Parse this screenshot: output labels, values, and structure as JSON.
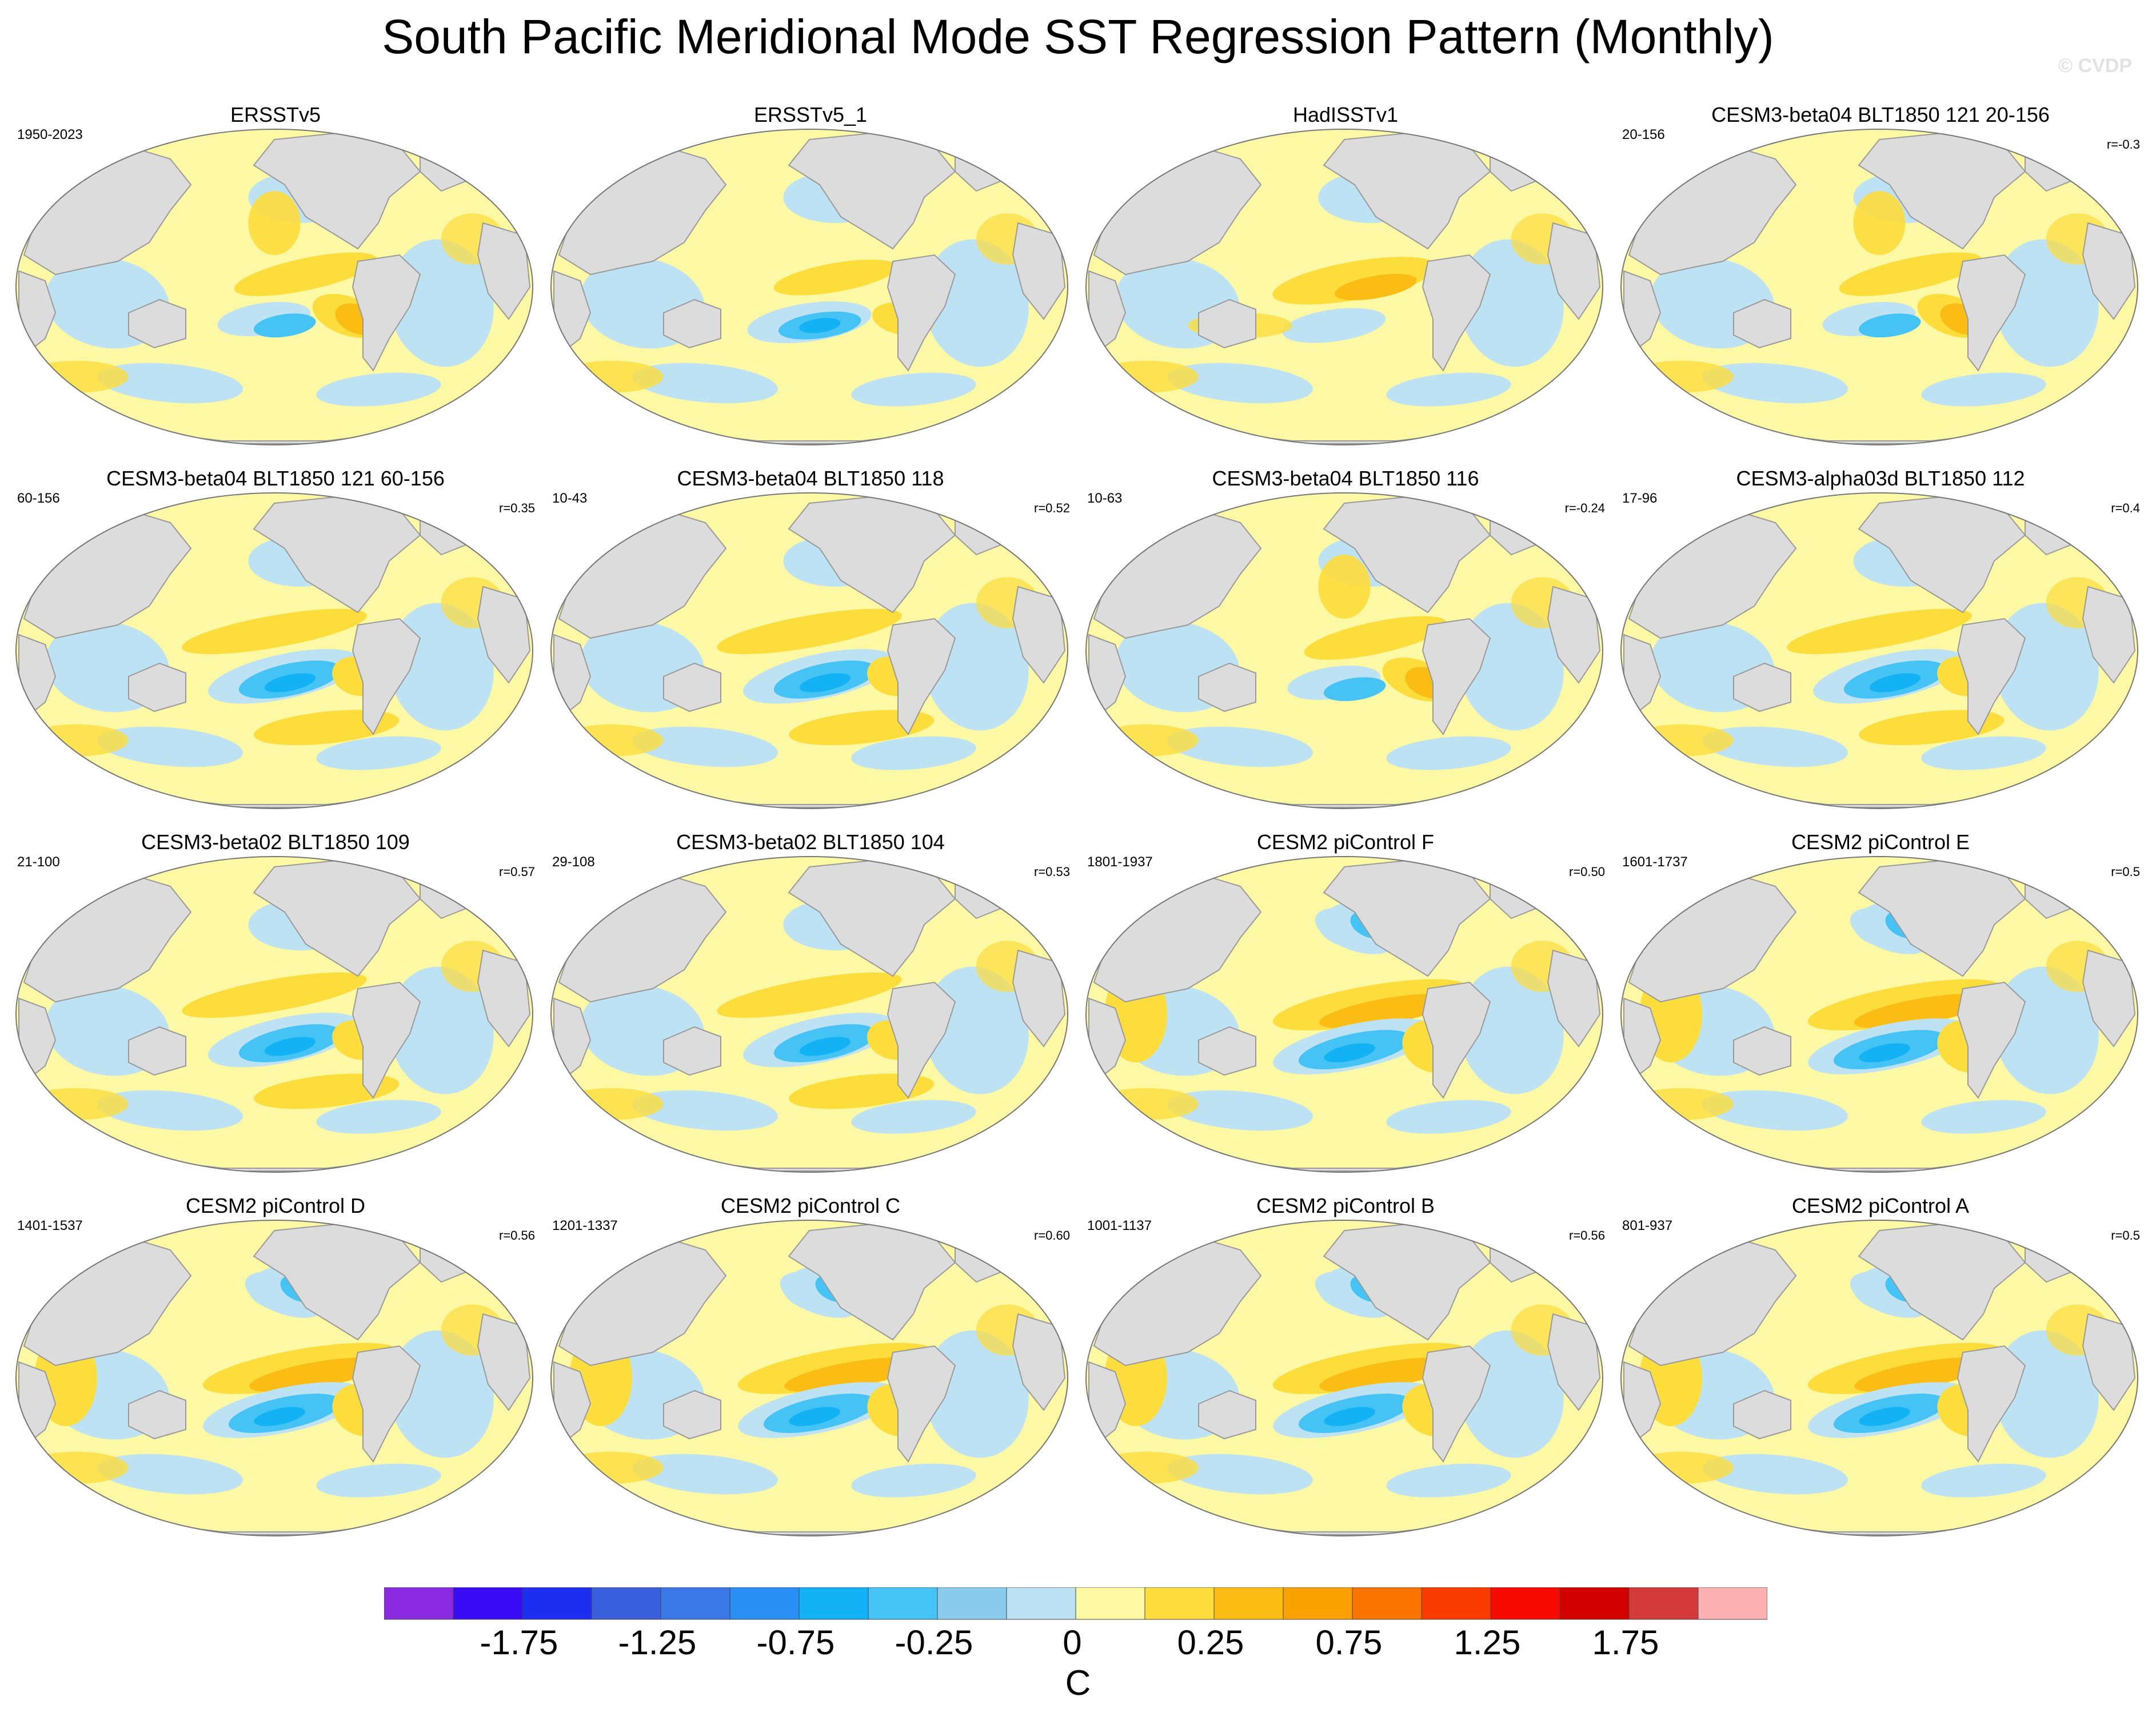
{
  "figure": {
    "title": "South Pacific Meridional Mode SST Regression Pattern (Monthly)",
    "watermark": "© CVDP"
  },
  "panels": [
    {
      "title": "ERSSTv5",
      "period": "1950-2023",
      "corr": "",
      "pattern": "obsA"
    },
    {
      "title": "ERSSTv5_1",
      "period": "",
      "corr": "",
      "pattern": "obsB"
    },
    {
      "title": "HadISSTv1",
      "period": "",
      "corr": "",
      "pattern": "obsC"
    },
    {
      "title": "CESM3-beta04 BLT1850 121 20-156",
      "period": "20-156",
      "corr": "r=-0.3",
      "pattern": "obsA"
    },
    {
      "title": "CESM3-beta04 BLT1850 121 60-156",
      "period": "60-156",
      "corr": "r=0.35",
      "pattern": "model"
    },
    {
      "title": "CESM3-beta04 BLT1850 118",
      "period": "10-43",
      "corr": "r=0.52",
      "pattern": "model"
    },
    {
      "title": "CESM3-beta04 BLT1850 116",
      "period": "10-63",
      "corr": "r=-0.24",
      "pattern": "obsA"
    },
    {
      "title": "CESM3-alpha03d BLT1850 112",
      "period": "17-96",
      "corr": "r=0.4",
      "pattern": "model"
    },
    {
      "title": "CESM3-beta02 BLT1850 109",
      "period": "21-100",
      "corr": "r=0.57",
      "pattern": "model"
    },
    {
      "title": "CESM3-beta02 BLT1850 104",
      "period": "29-108",
      "corr": "r=0.53",
      "pattern": "model"
    },
    {
      "title": "CESM2 piControl F",
      "period": "1801-1937",
      "corr": "r=0.50",
      "pattern": "cesm2"
    },
    {
      "title": "CESM2 piControl E",
      "period": "1601-1737",
      "corr": "r=0.5",
      "pattern": "cesm2"
    },
    {
      "title": "CESM2 piControl D",
      "period": "1401-1537",
      "corr": "r=0.56",
      "pattern": "cesm2"
    },
    {
      "title": "CESM2 piControl C",
      "period": "1201-1337",
      "corr": "r=0.60",
      "pattern": "cesm2"
    },
    {
      "title": "CESM2 piControl B",
      "period": "1001-1137",
      "corr": "r=0.56",
      "pattern": "cesm2"
    },
    {
      "title": "CESM2 piControl A",
      "period": "801-937",
      "corr": "r=0.5",
      "pattern": "cesm2"
    }
  ],
  "colorbar": {
    "unit": "C",
    "colors": [
      "#8a2be2",
      "#3a0cf5",
      "#1e2ef0",
      "#3a5fdc",
      "#3a78e8",
      "#2a8ff5",
      "#12b2f5",
      "#45c3f5",
      "#8acbed",
      "#bde2f3",
      "#fcf8a3",
      "#fddd3c",
      "#fbbc14",
      "#fba100",
      "#fb7400",
      "#fb3c00",
      "#f80a00",
      "#d40000",
      "#d43a3a",
      "#fcb2b2"
    ],
    "labels": [
      "-1.75",
      "-1.25",
      "-0.75",
      "-0.25",
      "0",
      "0.25",
      "0.75",
      "1.25",
      "1.75"
    ]
  },
  "colors": {
    "land": "#dcdcdc",
    "coast": "#9a9a9a",
    "ocean_neutral": "#fcf8a3"
  }
}
